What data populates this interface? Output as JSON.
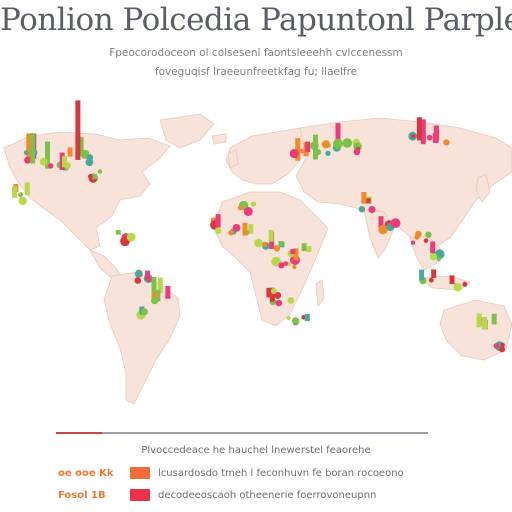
{
  "title": "Ponlion Polcedia Papuntonl Parple",
  "subtitle_lines": [
    "Fpeocorodoceon ol colsesenl faontsleeehh cvlccenessm",
    "foveguqisf lraeeunfreetkfag fu; llaelfre"
  ],
  "legend": {
    "title": "Plvoccedeace he hauchel lnewerstel feaorehe",
    "rows": [
      {
        "label": "oe ooe Kk",
        "swatch_color": "#f26b3a",
        "text": "lcusardosdo tmeh l feconhuvn fe boran rocoeono"
      },
      {
        "label": "Fosol 1B",
        "swatch_color": "#e8334a",
        "text": "decodeeoscaoh otheenerie foerrovoneupnn"
      }
    ]
  },
  "colors": {
    "land": "#f7e3d9",
    "land_edge": "#e9c9bb",
    "ocean": "#ffffff",
    "marker_pink": "#ee3a7a",
    "marker_green": "#7cc24a",
    "marker_lime": "#b6d94c",
    "marker_orange": "#f08a2a",
    "marker_red": "#d9363e",
    "marker_teal": "#4aa99a"
  },
  "scale_colors": [
    "#c8464a",
    "#9da0a6"
  ]
}
